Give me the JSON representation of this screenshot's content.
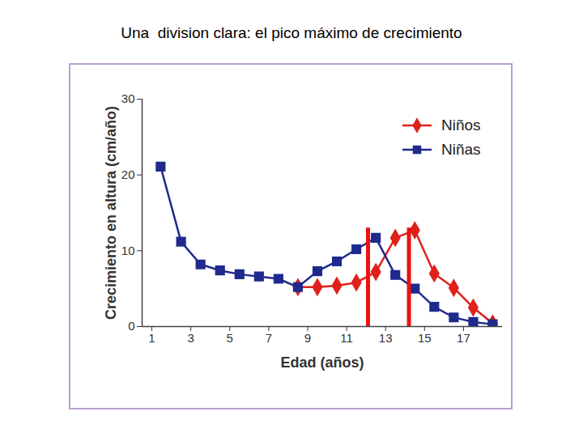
{
  "chart_data": {
    "type": "line",
    "title": "Una  division clara: el pico máximo de crecimiento",
    "x_label": "Edad (años)",
    "y_label": "Crecimiento en altura (cm/año)",
    "xlim": [
      0.5,
      19
    ],
    "xticks": [
      1,
      3,
      5,
      7,
      9,
      11,
      13,
      15,
      17
    ],
    "ylim": [
      0,
      30
    ],
    "yticks": [
      0,
      10,
      20,
      30
    ],
    "grid": false,
    "legend": "top-right",
    "series": [
      {
        "name": "Niños",
        "color": "#e0201b",
        "marker": "diamond",
        "x": [
          8.5,
          9.5,
          10.5,
          11.5,
          12.5,
          13.5,
          14.5,
          15.5,
          16.5,
          17.5,
          18.5
        ],
        "values": [
          5.2,
          5.2,
          5.4,
          5.8,
          7.2,
          11.7,
          12.7,
          7.0,
          5.1,
          2.5,
          0.4
        ]
      },
      {
        "name": "Niñas",
        "color": "#1f2a8c",
        "marker": "square",
        "x": [
          1.45,
          2.5,
          3.5,
          4.5,
          5.5,
          6.5,
          7.5,
          8.5,
          9.5,
          10.5,
          11.5,
          12.5,
          13.5,
          14.5,
          15.5,
          16.5,
          17.5,
          18.5
        ],
        "values": [
          21.1,
          11.2,
          8.2,
          7.4,
          6.9,
          6.6,
          6.3,
          5.2,
          7.3,
          8.6,
          10.2,
          11.7,
          6.8,
          5.0,
          2.6,
          1.2,
          0.6,
          0.3
        ]
      }
    ],
    "vlines": {
      "x": [
        12.1,
        14.2
      ],
      "y": [
        0,
        13
      ],
      "color": "#ee1111"
    }
  }
}
